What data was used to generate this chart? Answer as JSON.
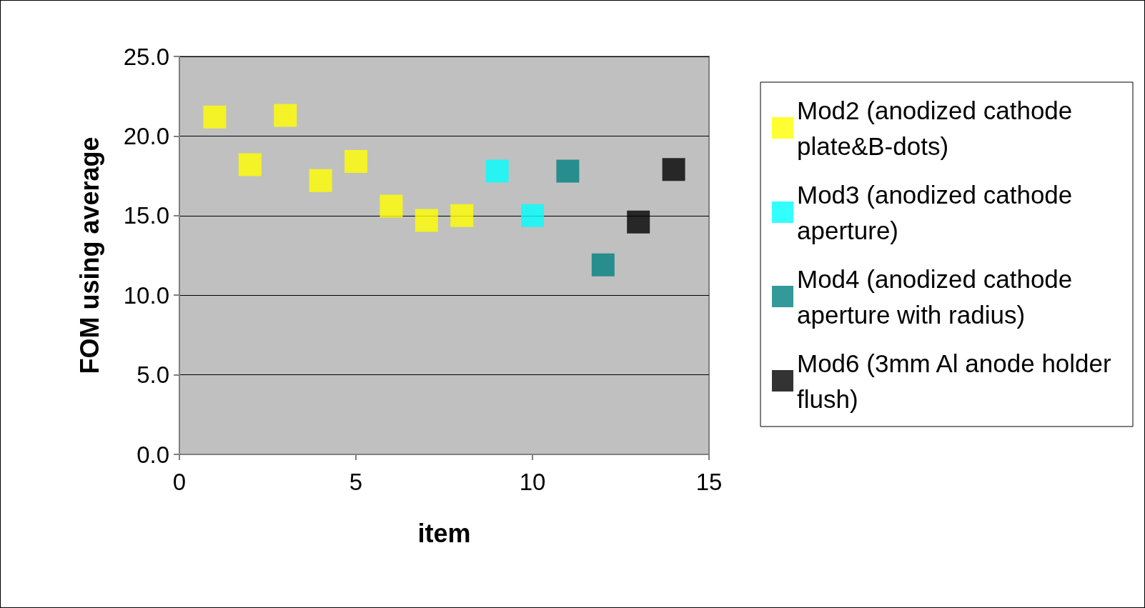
{
  "chart_data": {
    "type": "scatter",
    "xlabel": "item",
    "ylabel": "FOM using average",
    "xlim": [
      0,
      15
    ],
    "xticks": [
      0,
      5,
      10,
      15
    ],
    "ylim": [
      0,
      25
    ],
    "yticks": [
      {
        "value": 0,
        "label": "0.0"
      },
      {
        "value": 5,
        "label": "5.0"
      },
      {
        "value": 10,
        "label": "10.0"
      },
      {
        "value": 15,
        "label": "15.0"
      },
      {
        "value": 20,
        "label": "20.0"
      },
      {
        "value": 25,
        "label": "25.0"
      }
    ],
    "grid": "y",
    "legend": "right",
    "marker": "square",
    "series": [
      {
        "name": "Mod2 (anodized cathode plate&B-dots)",
        "color": "#ffff00",
        "x": [
          1,
          2,
          3,
          4,
          5,
          6,
          7,
          8
        ],
        "values": [
          21.2,
          18.2,
          21.3,
          17.2,
          18.4,
          15.6,
          14.7,
          15.0
        ]
      },
      {
        "name": "Mod3 (anodized cathode aperture)",
        "color": "#00ffff",
        "x": [
          9,
          10
        ],
        "values": [
          17.8,
          15.0
        ]
      },
      {
        "name": "Mod4 (anodized cathode aperture with radius)",
        "color": "#008080",
        "x": [
          11,
          12
        ],
        "values": [
          17.8,
          11.9
        ]
      },
      {
        "name": "Mod6 (3mm Al anode holder flush)",
        "color": "#000000",
        "x": [
          13,
          14
        ],
        "values": [
          14.6,
          17.9
        ]
      }
    ]
  }
}
